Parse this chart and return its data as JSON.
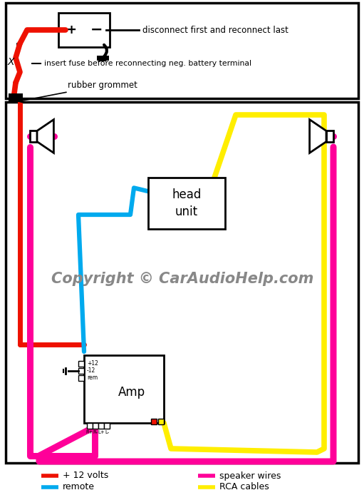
{
  "bg_color": "#ffffff",
  "color_red": "#ee1100",
  "color_cyan": "#00aaee",
  "color_magenta": "#ff0099",
  "color_yellow": "#ffee00",
  "color_black": "#000000",
  "annotation_disconnect": "disconnect first and reconnect last",
  "annotation_fuse": "insert fuse before reconnecting neg. battery terminal",
  "annotation_grommet": "rubber grommet",
  "copyright_text": "Copyright © CarAudioHelp.com",
  "legend_items": [
    {
      "color": "#ee1100",
      "label": "+ 12 volts"
    },
    {
      "color": "#00aaee",
      "label": "remote"
    },
    {
      "color": "#ff0099",
      "label": "speaker wires"
    },
    {
      "color": "#ffee00",
      "label": "RCA cables"
    }
  ]
}
